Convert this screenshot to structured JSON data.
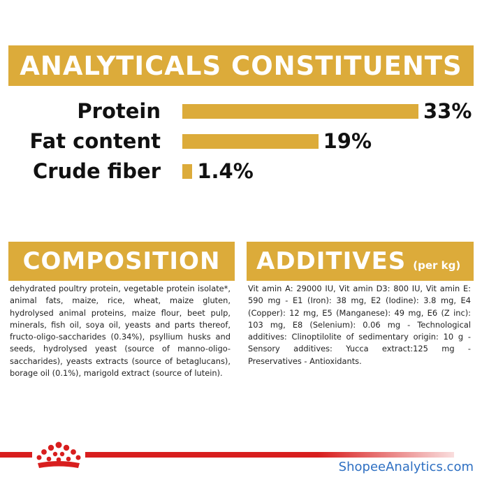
{
  "analytics": {
    "title": "ANALYTICALS CONSTITUENTS",
    "rows": [
      {
        "label": "Protein",
        "value_text": "33%",
        "value": 33
      },
      {
        "label": "Fat content",
        "value_text": "19%",
        "value": 19
      },
      {
        "label": "Crude fiber",
        "value_text": "1.4%",
        "value": 1.4
      }
    ]
  },
  "composition": {
    "title": "COMPOSITION",
    "text": "dehydrated poultry protein, vegetable protein isolate*, animal fats, maize, rice, wheat, maize gluten, hydrolysed animal proteins, maize flour, beet pulp, minerals, fish oil, soya oil, yeasts and parts thereof, fructo-oligo-saccharides (0.34%), psyllium husks and seeds, hydrolysed yeast (source of manno-oligo-saccharides), yeasts extracts (source of betaglucans), borage oil (0.1%), marigold extract (source of lutein)."
  },
  "additives": {
    "title": "ADDITIVES",
    "subtitle": "(per kg)",
    "text": "Vit amin A: 29000 IU, Vit amin D3: 800 IU, Vit amin E: 590 mg - E1 (Iron): 38 mg, E2 (Iodine): 3.8 mg, E4 (Copper): 12 mg, E5 (Manganese): 49 mg, E6 (Z inc): 103 mg, E8 (Selenium): 0.06 mg - Technological additives: Clinoptilolite of sedimentary origin: 10 g - Sensory additives: Yucca extract:125 mg - Preservatives - Antioxidants."
  },
  "footer": {
    "watermark": "ShopeeAnalytics.com",
    "logo_icon": "royal-canin-crown-icon"
  },
  "colors": {
    "accent": "#dcab3a",
    "footer_red": "#d81e1e",
    "watermark_blue": "#2d6fc2"
  }
}
